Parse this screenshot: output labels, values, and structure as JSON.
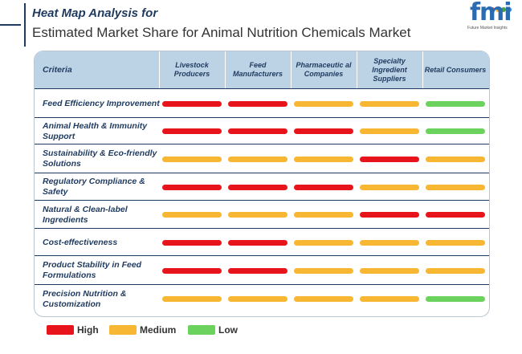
{
  "header": {
    "title_line1": "Heat Map Analysis for",
    "title_line2": "Estimated Market Share for Animal Nutrition Chemicals Market"
  },
  "logo": {
    "text": "fmi",
    "subtitle": "Future Market Insights",
    "dot_colors": [
      "#e53935",
      "#fbc02d",
      "#43a047",
      "#1e88e5"
    ]
  },
  "colors": {
    "High": "#e8141b",
    "Medium": "#f7b733",
    "Low": "#6cd25e",
    "header_bg": "#bcd3e6",
    "text_dark": "#1f3a5f"
  },
  "chart_data": {
    "type": "heatmap",
    "title": "Heat Map Analysis for Estimated Market Share for Animal Nutrition Chemicals Market",
    "corner_label": "Criteria",
    "columns": [
      "Livestock Producers",
      "Feed Manufacturers",
      "Pharmaceutic al Companies",
      "Specialty Ingredient Suppliers",
      "Retail Consumers"
    ],
    "rows": [
      {
        "label": "Feed Efficiency Improvement",
        "values": [
          "High",
          "High",
          "Medium",
          "Medium",
          "Low"
        ]
      },
      {
        "label": "Animal Health & Immunity Support",
        "values": [
          "High",
          "High",
          "High",
          "Medium",
          "Low"
        ]
      },
      {
        "label": "Sustainability & Eco-friendly Solutions",
        "values": [
          "Medium",
          "Medium",
          "Medium",
          "High",
          "Medium"
        ]
      },
      {
        "label": "Regulatory Compliance & Safety",
        "values": [
          "High",
          "High",
          "High",
          "Medium",
          "Medium"
        ]
      },
      {
        "label": "Natural & Clean-label Ingredients",
        "values": [
          "Medium",
          "Medium",
          "Medium",
          "High",
          "High"
        ]
      },
      {
        "label": "Cost-effectiveness",
        "values": [
          "High",
          "High",
          "Medium",
          "Medium",
          "Medium"
        ]
      },
      {
        "label": "Product Stability in Feed Formulations",
        "values": [
          "High",
          "High",
          "Medium",
          "Medium",
          "Medium"
        ]
      },
      {
        "label": "Precision Nutrition & Customization",
        "values": [
          "Medium",
          "Medium",
          "Medium",
          "Medium",
          "Low"
        ]
      }
    ],
    "legend": [
      "High",
      "Medium",
      "Low"
    ]
  }
}
